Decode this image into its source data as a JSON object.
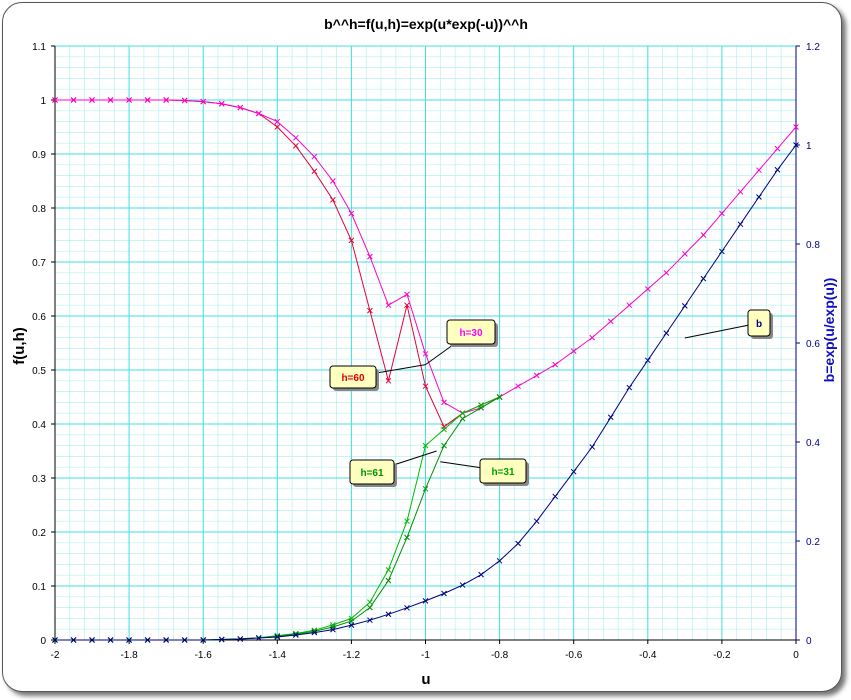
{
  "chart_data": {
    "type": "line",
    "title": "b^^h=f(u,h)=exp(u*exp(-u))^^h",
    "xlabel": "u",
    "ylabel": "f(u,h)",
    "y2label": "b=exp(u/exp(u))",
    "xlim": [
      -2,
      0
    ],
    "ylim": [
      0,
      1.1
    ],
    "y2lim": [
      0,
      1.2
    ],
    "x_ticks": [
      "-2",
      "-1.8",
      "-1.6",
      "-1.4",
      "-1.2",
      "-1",
      "-0.8",
      "-0.6",
      "-0.4",
      "-0.2",
      "0"
    ],
    "y_ticks": [
      "0",
      "0.1",
      "0.2",
      "0.3",
      "0.4",
      "0.5",
      "0.6",
      "0.7",
      "0.8",
      "0.9",
      "1",
      "1.1"
    ],
    "y2_ticks": [
      "0",
      "0.2",
      "0.4",
      "0.6",
      "0.8",
      "1",
      "1.2"
    ],
    "grid": true,
    "background": "#ffffff",
    "grid_color": "#40e0e0",
    "minor_grid_color": "#b8f0f0",
    "series": [
      {
        "name": "h=60",
        "color": "#e8003a",
        "axis": "left",
        "x": [
          -2,
          -1.95,
          -1.9,
          -1.85,
          -1.8,
          -1.75,
          -1.7,
          -1.65,
          -1.6,
          -1.55,
          -1.5,
          -1.45,
          -1.4,
          -1.35,
          -1.3,
          -1.25,
          -1.2,
          -1.15,
          -1.1,
          -1.05,
          -1,
          -0.95,
          -0.9,
          -0.85,
          -0.8
        ],
        "y": [
          1.0,
          1.0,
          1.0,
          1.0,
          1.0,
          1.0,
          1.0,
          0.999,
          0.997,
          0.993,
          0.986,
          0.975,
          0.95,
          0.915,
          0.868,
          0.815,
          0.74,
          0.61,
          0.48,
          0.62,
          0.47,
          0.395,
          0.42,
          0.435,
          0.45
        ]
      },
      {
        "name": "h=30",
        "color": "#ff00cc",
        "axis": "left",
        "x": [
          -2,
          -1.95,
          -1.9,
          -1.85,
          -1.8,
          -1.75,
          -1.7,
          -1.65,
          -1.6,
          -1.55,
          -1.5,
          -1.45,
          -1.4,
          -1.35,
          -1.3,
          -1.25,
          -1.2,
          -1.15,
          -1.1,
          -1.05,
          -1,
          -0.95,
          -0.9,
          -0.85,
          -0.8,
          -0.75,
          -0.7,
          -0.65,
          -0.6,
          -0.55,
          -0.5,
          -0.45,
          -0.4,
          -0.35,
          -0.3,
          -0.25,
          -0.2,
          -0.15,
          -0.1,
          -0.05,
          0
        ],
        "y": [
          1.0,
          1.0,
          1.0,
          1.0,
          1.0,
          1.0,
          1.0,
          0.999,
          0.997,
          0.993,
          0.986,
          0.975,
          0.96,
          0.93,
          0.895,
          0.85,
          0.79,
          0.71,
          0.62,
          0.64,
          0.53,
          0.44,
          0.42,
          0.43,
          0.45,
          0.47,
          0.49,
          0.51,
          0.535,
          0.56,
          0.59,
          0.62,
          0.65,
          0.68,
          0.715,
          0.75,
          0.79,
          0.83,
          0.87,
          0.91,
          0.95
        ]
      },
      {
        "name": "h=61",
        "color": "#00b800",
        "axis": "left",
        "x": [
          -2,
          -1.95,
          -1.9,
          -1.85,
          -1.8,
          -1.75,
          -1.7,
          -1.65,
          -1.6,
          -1.55,
          -1.5,
          -1.45,
          -1.4,
          -1.35,
          -1.3,
          -1.25,
          -1.2,
          -1.15,
          -1.1,
          -1.05,
          -1,
          -0.95,
          -0.9,
          -0.85,
          -0.8
        ],
        "y": [
          0,
          0,
          0,
          0,
          0,
          0,
          0,
          0,
          0,
          0.001,
          0.002,
          0.004,
          0.008,
          0.012,
          0.018,
          0.028,
          0.04,
          0.07,
          0.13,
          0.22,
          0.36,
          0.39,
          0.42,
          0.435,
          0.45
        ]
      },
      {
        "name": "h=31",
        "color": "#009000",
        "axis": "left",
        "x": [
          -2,
          -1.95,
          -1.9,
          -1.85,
          -1.8,
          -1.75,
          -1.7,
          -1.65,
          -1.6,
          -1.55,
          -1.5,
          -1.45,
          -1.4,
          -1.35,
          -1.3,
          -1.25,
          -1.2,
          -1.15,
          -1.1,
          -1.05,
          -1,
          -0.95,
          -0.9,
          -0.85,
          -0.8
        ],
        "y": [
          0,
          0,
          0,
          0,
          0,
          0,
          0,
          0,
          0,
          0.001,
          0.002,
          0.004,
          0.007,
          0.011,
          0.016,
          0.024,
          0.035,
          0.06,
          0.11,
          0.19,
          0.28,
          0.36,
          0.41,
          0.43,
          0.45
        ]
      },
      {
        "name": "b",
        "color": "#000080",
        "axis": "right",
        "x": [
          -2,
          -1.95,
          -1.9,
          -1.85,
          -1.8,
          -1.75,
          -1.7,
          -1.65,
          -1.6,
          -1.55,
          -1.5,
          -1.45,
          -1.4,
          -1.35,
          -1.3,
          -1.25,
          -1.2,
          -1.15,
          -1.1,
          -1.05,
          -1,
          -0.95,
          -0.9,
          -0.85,
          -0.8,
          -0.75,
          -0.7,
          -0.65,
          -0.6,
          -0.55,
          -0.5,
          -0.45,
          -0.4,
          -0.35,
          -0.3,
          -0.25,
          -0.2,
          -0.15,
          -0.1,
          -0.05,
          0
        ],
        "y": [
          0.0,
          0.0,
          0.0,
          0.0,
          0.0,
          0.0,
          0.0,
          0.0,
          0.0,
          0.001,
          0.002,
          0.004,
          0.006,
          0.01,
          0.015,
          0.021,
          0.03,
          0.04,
          0.052,
          0.065,
          0.079,
          0.094,
          0.111,
          0.132,
          0.16,
          0.195,
          0.24,
          0.29,
          0.34,
          0.39,
          0.45,
          0.51,
          0.565,
          0.62,
          0.675,
          0.73,
          0.785,
          0.84,
          0.895,
          0.95,
          1.0
        ]
      }
    ],
    "callouts": [
      {
        "label": "h=30",
        "color": "#ff00ff",
        "point": [
          -1.0,
          0.51
        ]
      },
      {
        "label": "h=60",
        "color": "#e00000",
        "point": [
          -1.0,
          0.51
        ]
      },
      {
        "label": "h=61",
        "color": "#009000",
        "point": [
          -0.97,
          0.35
        ]
      },
      {
        "label": "h=31",
        "color": "#00a000",
        "point": [
          -0.96,
          0.33
        ]
      },
      {
        "label": "b",
        "color": "#000080",
        "point": [
          -0.3,
          0.61
        ]
      }
    ]
  }
}
